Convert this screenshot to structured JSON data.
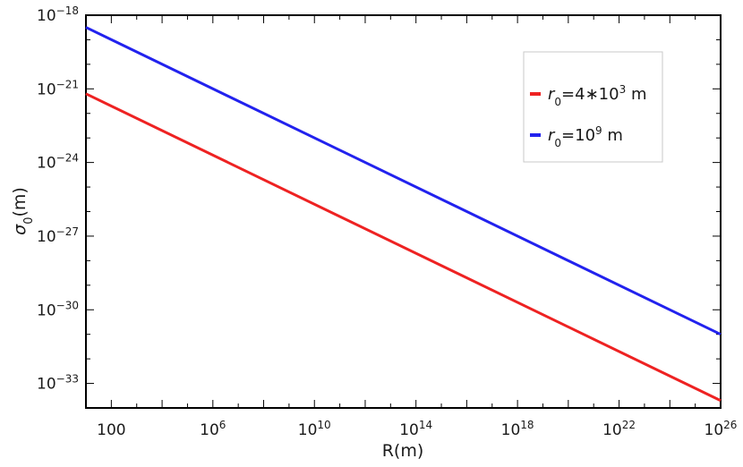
{
  "chart_data": {
    "type": "line",
    "x_scale": "log",
    "y_scale": "log",
    "xlabel": "R(m)",
    "ylabel": "σ0(m)",
    "ylabel_parts": {
      "base": "σ",
      "sub": "0",
      "rest": "(m)"
    },
    "xlim": [
      10,
      1e+26
    ],
    "ylim": [
      1e-34,
      1e-18
    ],
    "x_ticks": [
      {
        "value": 100,
        "base": "100",
        "exp": ""
      },
      {
        "value": 1000000.0,
        "base": "10",
        "exp": "6"
      },
      {
        "value": 10000000000.0,
        "base": "10",
        "exp": "10"
      },
      {
        "value": 100000000000000.0,
        "base": "10",
        "exp": "14"
      },
      {
        "value": 1e+18,
        "base": "10",
        "exp": "18"
      },
      {
        "value": 1e+22,
        "base": "10",
        "exp": "22"
      },
      {
        "value": 1e+26,
        "base": "10",
        "exp": "26"
      }
    ],
    "y_ticks": [
      {
        "value": 1e-18,
        "base": "10",
        "exp": "−18"
      },
      {
        "value": 1e-21,
        "base": "10",
        "exp": "−21"
      },
      {
        "value": 1e-24,
        "base": "10",
        "exp": "−24"
      },
      {
        "value": 1e-27,
        "base": "10",
        "exp": "−27"
      },
      {
        "value": 1e-30,
        "base": "10",
        "exp": "−30"
      },
      {
        "value": 1e-33,
        "base": "10",
        "exp": "−33"
      }
    ],
    "grid": false,
    "legend_position": "top-right",
    "series": [
      {
        "name": "r0=4*10^3 m",
        "legend": {
          "var": "r",
          "sub": "0",
          "pre": "=4∗10",
          "exp": "3",
          "post": " m"
        },
        "color": "#ee2222",
        "x": [
          10,
          1e+26
        ],
        "y": [
          6.3e-22,
          2e-34
        ]
      },
      {
        "name": "r0=10^9 m",
        "legend": {
          "var": "r",
          "sub": "0",
          "pre": "=10",
          "exp": "9",
          "post": " m"
        },
        "color": "#2222ee",
        "x": [
          10,
          1e+26
        ],
        "y": [
          3.2e-19,
          1e-31
        ]
      }
    ]
  }
}
